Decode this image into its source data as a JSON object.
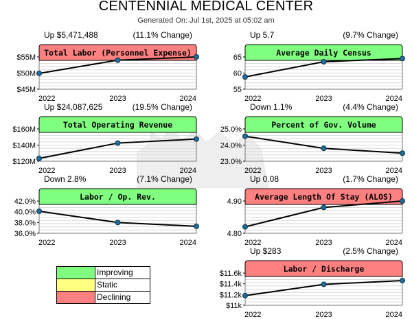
{
  "header": {
    "title": "CENTENNIAL MEDICAL CENTER",
    "generated": "Generated On: Jul 1st, 2025 at 05:02 am"
  },
  "colors": {
    "improving": "#80ff80",
    "static": "#ffff80",
    "declining": "#ff8080",
    "line": "#000000",
    "marker": "#1f6f9a"
  },
  "legend": [
    {
      "label": "Improving",
      "color": "#80ff80"
    },
    {
      "label": "Static",
      "color": "#ffff80"
    },
    {
      "label": "Declining",
      "color": "#ff8080"
    }
  ],
  "chart_data": [
    {
      "type": "line",
      "title": "Total Labor (Personnel Expense)",
      "status": "declining",
      "change_left": "Up $5,471,488",
      "change_right": "(11.1% Change)",
      "x": [
        "2022",
        "2023",
        "2024"
      ],
      "values": [
        49.9,
        54.0,
        55.4
      ],
      "ylim": [
        45,
        55
      ],
      "yticks": [
        45,
        50,
        55
      ],
      "yticklabels": [
        "$45M",
        "$50M",
        "$55M"
      ]
    },
    {
      "type": "line",
      "title": "Average Daily Census",
      "status": "improving",
      "change_left": "Up 5.7",
      "change_right": "(9.7% Change)",
      "x": [
        "2022",
        "2023",
        "2024"
      ],
      "values": [
        58.8,
        63.5,
        64.5
      ],
      "ylim": [
        55,
        65
      ],
      "yticks": [
        55,
        60,
        65
      ],
      "yticklabels": [
        "55",
        "60",
        "65"
      ]
    },
    {
      "type": "line",
      "title": "Total Operating Revenue",
      "status": "improving",
      "change_left": "Up $24,087,625",
      "change_right": "(19.5% Change)",
      "x": [
        "2022",
        "2023",
        "2024"
      ],
      "values": [
        123.5,
        142.5,
        147.5
      ],
      "ylim": [
        120,
        160
      ],
      "yticks": [
        120,
        140,
        160
      ],
      "yticklabels": [
        "$120M",
        "$140M",
        "$160M"
      ]
    },
    {
      "type": "line",
      "title": "Percent of Gov. Volume",
      "status": "improving",
      "change_left": "Down 1.1%",
      "change_right": "(4.4% Change)",
      "x": [
        "2022",
        "2023",
        "2024"
      ],
      "values": [
        24.55,
        23.8,
        23.5
      ],
      "ylim": [
        23.0,
        25.0
      ],
      "yticks": [
        23.0,
        24.0,
        25.0
      ],
      "yticklabels": [
        "23.0%",
        "24.0%",
        "25.0%"
      ]
    },
    {
      "type": "line",
      "title": "Labor / Op. Rev.",
      "status": "improving",
      "change_left": "Down 2.8%",
      "change_right": "(7.1% Change)",
      "x": [
        "2022",
        "2023",
        "2024"
      ],
      "values": [
        40.1,
        38.0,
        37.3
      ],
      "ylim": [
        36.0,
        42.0
      ],
      "yticks": [
        36.0,
        38.0,
        40.0,
        42.0
      ],
      "yticklabels": [
        "36.0%",
        "38.0%",
        "40.0%",
        "42.0%"
      ]
    },
    {
      "type": "line",
      "title": "Average Length Of Stay (ALOS)",
      "status": "declining",
      "change_left": "Up 0.08",
      "change_right": "(1.7% Change)",
      "x": [
        "2022",
        "2023",
        "2024"
      ],
      "values": [
        4.82,
        4.88,
        4.9
      ],
      "ylim": [
        4.8,
        4.9
      ],
      "yticks": [
        4.8,
        4.9
      ],
      "yticklabels": [
        "4.80",
        "4.90"
      ]
    },
    {
      "type": "line",
      "title": "Labor / Discharge",
      "status": "declining",
      "change_left": "Up $283",
      "change_right": "(2.5% Change)",
      "x": [
        "2022",
        "2023",
        "2024"
      ],
      "values": [
        11.18,
        11.39,
        11.46
      ],
      "ylim": [
        11.0,
        11.6
      ],
      "yticks": [
        11.0,
        11.2,
        11.4,
        11.6
      ],
      "yticklabels": [
        "$11k",
        "$11.2k",
        "$11.4k",
        "$11.6k"
      ]
    }
  ]
}
